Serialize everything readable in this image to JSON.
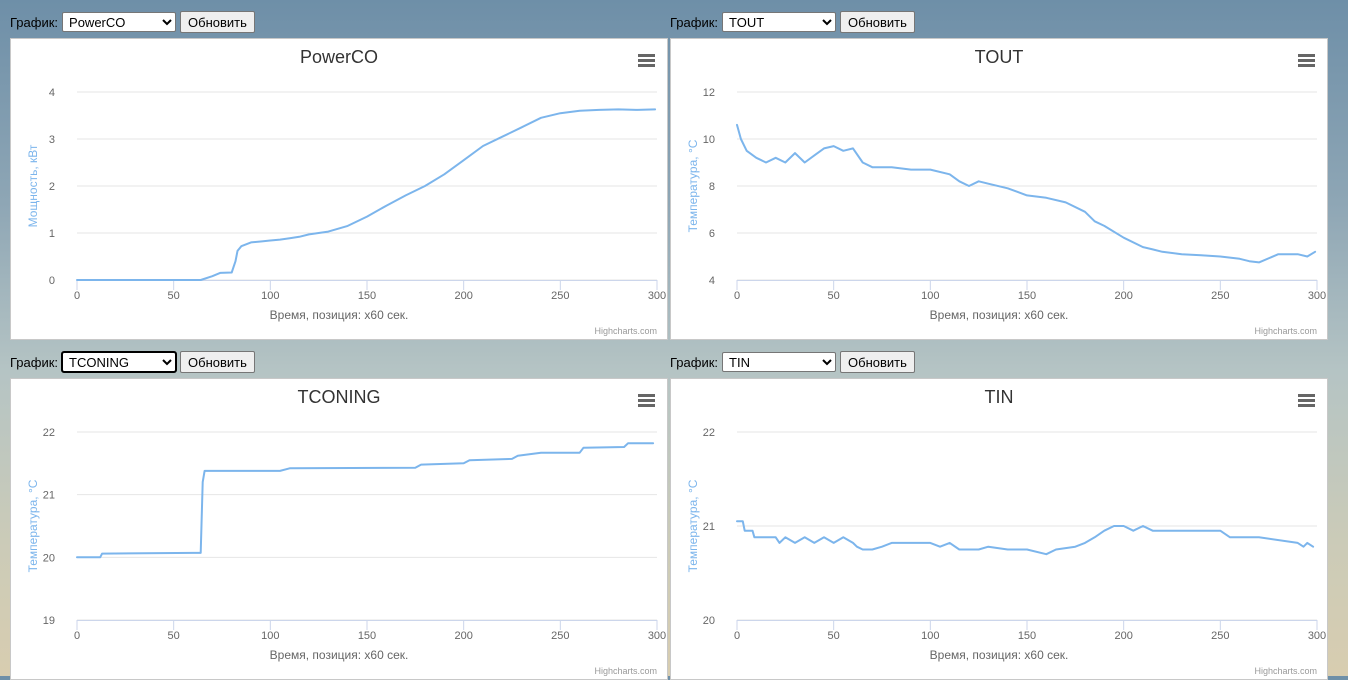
{
  "controls": {
    "label": "График:",
    "refresh_label": "Обновить"
  },
  "credits": "Highcharts.com",
  "colors": {
    "series": "#7cb5ec",
    "axis_text": "#666666",
    "title": "#333333",
    "grid": "#e6e6e6",
    "axis_title": "#7cb5ec"
  },
  "chart_data": [
    {
      "type": "line",
      "selected": "PowerCO",
      "title": "PowerCO",
      "xlabel": "Время, позиция: x60 сек.",
      "ylabel": "Мощность, кВт",
      "xlim": [
        0,
        300
      ],
      "ylim": [
        0,
        4
      ],
      "xticks": [
        0,
        50,
        100,
        150,
        200,
        250,
        300
      ],
      "yticks": [
        0,
        1,
        2,
        3,
        4
      ],
      "grid": true,
      "legend": false,
      "x": [
        0,
        20,
        40,
        60,
        64,
        70,
        74,
        80,
        82,
        83,
        85,
        90,
        95,
        100,
        105,
        110,
        115,
        120,
        130,
        140,
        150,
        160,
        170,
        180,
        190,
        200,
        210,
        220,
        230,
        240,
        250,
        260,
        270,
        280,
        290,
        299
      ],
      "y": [
        0,
        0,
        0,
        0,
        0,
        0.08,
        0.15,
        0.16,
        0.4,
        0.62,
        0.72,
        0.8,
        0.82,
        0.84,
        0.86,
        0.89,
        0.92,
        0.97,
        1.03,
        1.15,
        1.35,
        1.58,
        1.8,
        2.0,
        2.25,
        2.55,
        2.85,
        3.05,
        3.25,
        3.45,
        3.55,
        3.6,
        3.62,
        3.63,
        3.62,
        3.63
      ]
    },
    {
      "type": "line",
      "selected": "TOUT",
      "title": "TOUT",
      "xlabel": "Время, позиция: x60 сек.",
      "ylabel": "Температура, °C",
      "xlim": [
        0,
        300
      ],
      "ylim": [
        4,
        12
      ],
      "xticks": [
        0,
        50,
        100,
        150,
        200,
        250,
        300
      ],
      "yticks": [
        4,
        6,
        8,
        10,
        12
      ],
      "grid": true,
      "legend": false,
      "x": [
        0,
        2,
        5,
        10,
        15,
        20,
        25,
        30,
        35,
        40,
        45,
        50,
        55,
        60,
        65,
        70,
        80,
        90,
        100,
        110,
        115,
        120,
        125,
        130,
        140,
        150,
        160,
        170,
        180,
        185,
        190,
        200,
        210,
        215,
        220,
        230,
        240,
        250,
        260,
        265,
        270,
        280,
        290,
        295,
        299
      ],
      "y": [
        10.6,
        10.0,
        9.5,
        9.2,
        9.0,
        9.2,
        9.0,
        9.4,
        9.0,
        9.3,
        9.6,
        9.7,
        9.5,
        9.6,
        9.0,
        8.8,
        8.8,
        8.7,
        8.7,
        8.5,
        8.2,
        8.0,
        8.2,
        8.1,
        7.9,
        7.6,
        7.5,
        7.3,
        6.9,
        6.5,
        6.3,
        5.8,
        5.4,
        5.3,
        5.2,
        5.1,
        5.05,
        5.0,
        4.9,
        4.8,
        4.75,
        5.1,
        5.1,
        5.0,
        5.2
      ]
    },
    {
      "type": "line",
      "selected": "TCONING",
      "title": "TCONING",
      "xlabel": "Время, позиция: x60 сек.",
      "ylabel": "Температура, °C",
      "xlim": [
        0,
        300
      ],
      "ylim": [
        19,
        22
      ],
      "xticks": [
        0,
        50,
        100,
        150,
        200,
        250,
        300
      ],
      "yticks": [
        19,
        20,
        21,
        22
      ],
      "grid": true,
      "legend": false,
      "x": [
        0,
        12,
        13,
        60,
        64,
        65,
        66,
        105,
        110,
        175,
        178,
        200,
        203,
        225,
        228,
        240,
        260,
        262,
        283,
        285,
        298
      ],
      "y": [
        20.0,
        20.0,
        20.06,
        20.07,
        20.07,
        21.2,
        21.38,
        21.38,
        21.42,
        21.43,
        21.48,
        21.5,
        21.55,
        21.57,
        21.62,
        21.67,
        21.67,
        21.75,
        21.76,
        21.82,
        21.82
      ]
    },
    {
      "type": "line",
      "selected": "TIN",
      "title": "TIN",
      "xlabel": "Время, позиция: x60 сек.",
      "ylabel": "Температура, °C",
      "xlim": [
        0,
        300
      ],
      "ylim": [
        20,
        22
      ],
      "xticks": [
        0,
        50,
        100,
        150,
        200,
        250,
        300
      ],
      "yticks": [
        20,
        21,
        22
      ],
      "grid": true,
      "legend": false,
      "x": [
        0,
        3,
        4,
        8,
        9,
        20,
        22,
        25,
        30,
        35,
        40,
        45,
        50,
        55,
        60,
        62,
        65,
        70,
        75,
        80,
        85,
        100,
        105,
        110,
        115,
        125,
        130,
        140,
        150,
        160,
        165,
        175,
        180,
        185,
        190,
        195,
        200,
        205,
        210,
        215,
        220,
        250,
        255,
        270,
        290,
        293,
        295,
        298
      ],
      "y": [
        21.05,
        21.05,
        20.95,
        20.95,
        20.88,
        20.88,
        20.82,
        20.88,
        20.82,
        20.88,
        20.82,
        20.88,
        20.82,
        20.88,
        20.82,
        20.78,
        20.75,
        20.75,
        20.78,
        20.82,
        20.82,
        20.82,
        20.78,
        20.82,
        20.75,
        20.75,
        20.78,
        20.75,
        20.75,
        20.7,
        20.75,
        20.78,
        20.82,
        20.88,
        20.95,
        21.0,
        21.0,
        20.95,
        21.0,
        20.95,
        20.95,
        20.95,
        20.88,
        20.88,
        20.82,
        20.78,
        20.82,
        20.78
      ]
    }
  ]
}
